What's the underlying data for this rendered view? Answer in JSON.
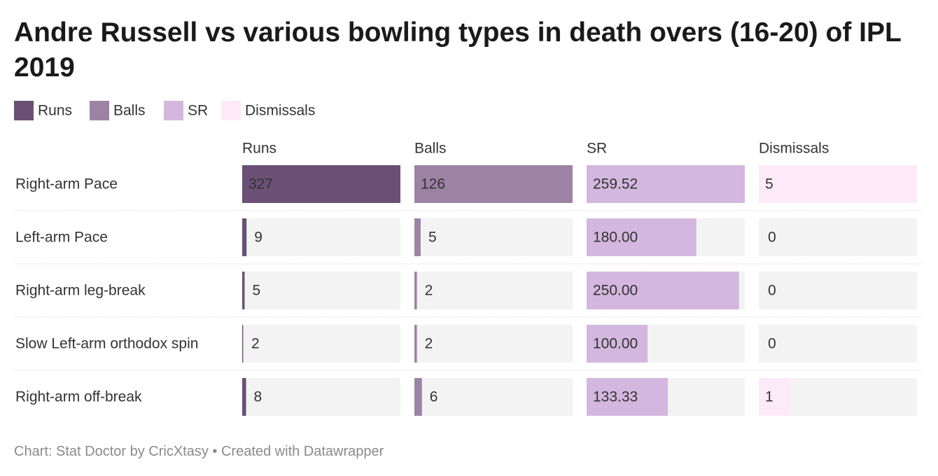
{
  "chart_data": {
    "type": "bar",
    "title": "Andre Russell vs various bowling types in death overs (16-20) of IPL 2019",
    "categories": [
      "Right-arm Pace",
      "Left-arm Pace",
      "Right-arm leg-break",
      "Slow Left-arm orthodox spin",
      "Right-arm off-break"
    ],
    "series": [
      {
        "name": "Runs",
        "color": "#6a5075",
        "values": [
          327,
          9,
          5,
          2,
          8
        ]
      },
      {
        "name": "Balls",
        "color": "#9c83a4",
        "values": [
          126,
          5,
          2,
          2,
          6
        ]
      },
      {
        "name": "SR",
        "color": "#d3b7de",
        "values": [
          259.52,
          180,
          250,
          100,
          133.33
        ],
        "value_labels": [
          "259.52",
          "180.00",
          "250.00",
          "100.00",
          "133.33"
        ]
      },
      {
        "name": "Dismissals",
        "color": "#fdeaf8",
        "values": [
          5,
          0,
          0,
          0,
          1
        ]
      }
    ],
    "source": "Chart: Stat Doctor by CricXtasy • Created with Datawrapper"
  }
}
